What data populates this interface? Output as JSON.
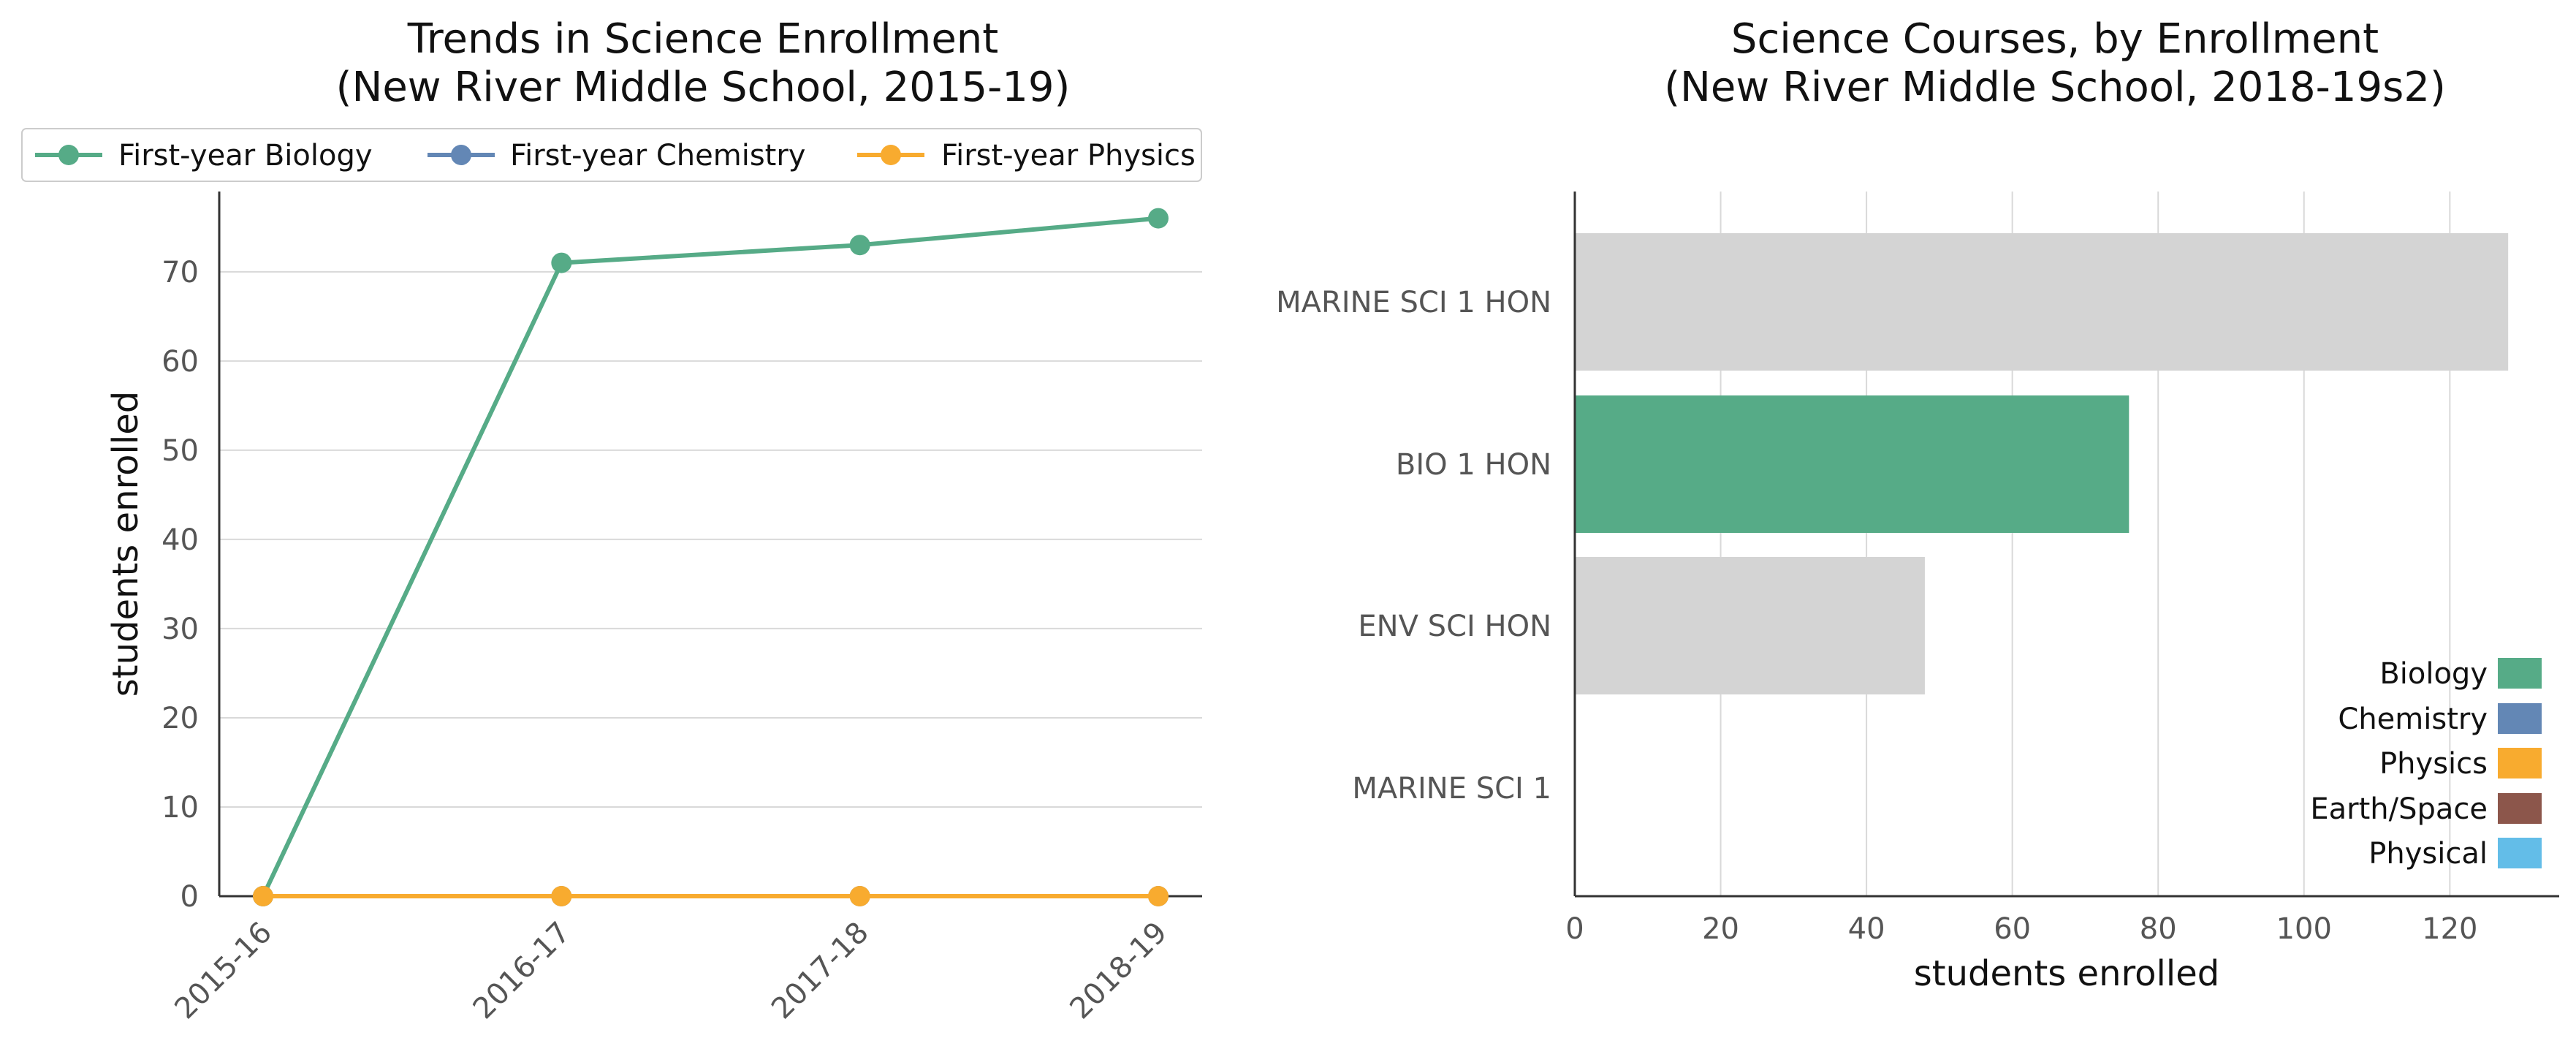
{
  "chart_data": [
    {
      "type": "line",
      "title_line1": "Trends in Science Enrollment",
      "title_line2": "(New River Middle School, 2015-19)",
      "xlabel": "",
      "ylabel": "students enrolled",
      "x": [
        "2015-16",
        "2016-17",
        "2017-18",
        "2018-19"
      ],
      "ylim": [
        0,
        79
      ],
      "yticks": [
        "0",
        "10",
        "20",
        "30",
        "40",
        "50",
        "60",
        "70"
      ],
      "grid": "horizontal",
      "legend_position": "top",
      "series": [
        {
          "name": "First-year Biology",
          "color": "#56ab87",
          "values": [
            0,
            71,
            73,
            76
          ]
        },
        {
          "name": "First-year Chemistry",
          "color": "#6387b5",
          "values": [
            0,
            0,
            0,
            0
          ]
        },
        {
          "name": "First-year Physics",
          "color": "#f8ab2f",
          "values": [
            0,
            0,
            0,
            0
          ]
        }
      ]
    },
    {
      "type": "bar",
      "orientation": "horizontal",
      "title_line1": "Science Courses, by Enrollment",
      "title_line2": "(New River Middle School, 2018-19s2)",
      "xlabel": "students enrolled",
      "ylabel": "",
      "xlim": [
        0,
        135
      ],
      "xticks": [
        "0",
        "20",
        "40",
        "60",
        "80",
        "100",
        "120"
      ],
      "grid": "vertical",
      "legend_position": "bottom-right",
      "categories": [
        "MARINE SCI 1 HON",
        "BIO 1 HON",
        "ENV SCI HON",
        "MARINE SCI 1"
      ],
      "values": [
        128,
        76,
        48,
        0
      ],
      "bar_colors": [
        "#d4d4d4",
        "#56ab87",
        "#d4d4d4",
        "#d4d4d4"
      ],
      "legend": [
        {
          "name": "Biology",
          "color": "#56ab87"
        },
        {
          "name": "Chemistry",
          "color": "#6387b5"
        },
        {
          "name": "Physics",
          "color": "#f8ab2f"
        },
        {
          "name": "Earth/Space",
          "color": "#8c564b"
        },
        {
          "name": "Physical",
          "color": "#63bde8"
        }
      ]
    }
  ]
}
